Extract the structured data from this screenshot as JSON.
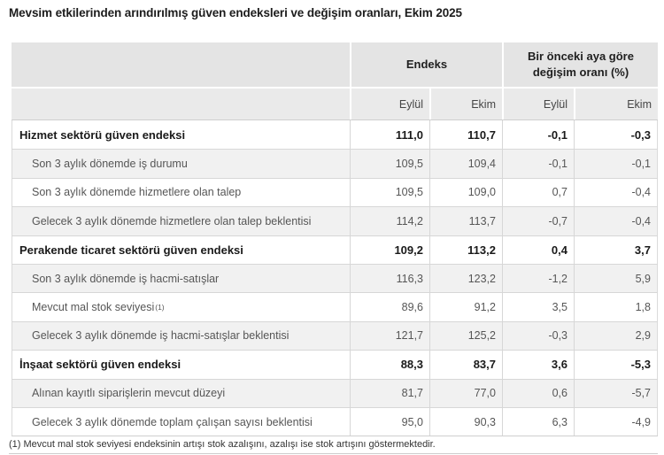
{
  "title": "Mevsim etkilerinden arındırılmış güven endeksleri ve değişim oranları, Ekim 2025",
  "table": {
    "col_groups": [
      {
        "label": "Endeks"
      },
      {
        "label": "Bir önceki aya göre değişim oranı (%)"
      }
    ],
    "sub_headers": [
      "Eylül",
      "Ekim",
      "Eylül",
      "Ekim"
    ],
    "rows": [
      {
        "label": "Hizmet sektörü güven endeksi",
        "bold": true,
        "values": [
          "111,0",
          "110,7",
          "-0,1",
          "-0,3"
        ]
      },
      {
        "label": "Son 3 aylık dönemde iş durumu",
        "bold": false,
        "values": [
          "109,5",
          "109,4",
          "-0,1",
          "-0,1"
        ]
      },
      {
        "label": "Son 3 aylık dönemde hizmetlere olan talep",
        "bold": false,
        "values": [
          "109,5",
          "109,0",
          "0,7",
          "-0,4"
        ]
      },
      {
        "label": "Gelecek 3 aylık dönemde hizmetlere olan talep beklentisi",
        "bold": false,
        "values": [
          "114,2",
          "113,7",
          "-0,7",
          "-0,4"
        ]
      },
      {
        "label": "Perakende ticaret sektörü güven endeksi",
        "bold": true,
        "values": [
          "109,2",
          "113,2",
          "0,4",
          "3,7"
        ]
      },
      {
        "label": "Son 3 aylık dönemde iş hacmi-satışlar",
        "bold": false,
        "values": [
          "116,3",
          "123,2",
          "-1,2",
          "5,9"
        ]
      },
      {
        "label": "Mevcut mal stok seviyesi",
        "sup": "(1)",
        "bold": false,
        "values": [
          "89,6",
          "91,2",
          "3,5",
          "1,8"
        ]
      },
      {
        "label": "Gelecek 3 aylık dönemde iş hacmi-satışlar beklentisi",
        "bold": false,
        "values": [
          "121,7",
          "125,2",
          "-0,3",
          "2,9"
        ]
      },
      {
        "label": "İnşaat sektörü güven endeksi",
        "bold": true,
        "values": [
          "88,3",
          "83,7",
          "3,6",
          "-5,3"
        ]
      },
      {
        "label": "Alınan kayıtlı siparişlerin mevcut düzeyi",
        "bold": false,
        "values": [
          "81,7",
          "77,0",
          "0,6",
          "-5,7"
        ]
      },
      {
        "label": "Gelecek 3 aylık dönemde toplam çalışan sayısı beklentisi",
        "bold": false,
        "values": [
          "95,0",
          "90,3",
          "6,3",
          "-4,9"
        ]
      }
    ]
  },
  "footnote": "(1) Mevcut mal stok seviyesi endeksinin artışı stok azalışını, azalışı ise stok artışını göstermektedir.",
  "colors": {
    "header_group_bg": "#e4e4e4",
    "header_sub_bg": "#eaeaea",
    "stripe_bg": "#f1f1f1",
    "border": "#d7d7d7",
    "text_primary": "#1a1a1a",
    "text_secondary": "#565656"
  },
  "chart_data": {
    "type": "table",
    "title": "Mevsim etkilerinden arındırılmış güven endeksleri ve değişim oranları, Ekim 2025",
    "columns": [
      "Endeks Eylül",
      "Endeks Ekim",
      "Bir önceki aya göre değişim oranı (%) Eylül",
      "Bir önceki aya göre değişim oranı (%) Ekim"
    ],
    "rows": [
      {
        "label": "Hizmet sektörü güven endeksi",
        "values": [
          111.0,
          110.7,
          -0.1,
          -0.3
        ]
      },
      {
        "label": "Son 3 aylık dönemde iş durumu",
        "values": [
          109.5,
          109.4,
          -0.1,
          -0.1
        ]
      },
      {
        "label": "Son 3 aylık dönemde hizmetlere olan talep",
        "values": [
          109.5,
          109.0,
          0.7,
          -0.4
        ]
      },
      {
        "label": "Gelecek 3 aylık dönemde hizmetlere olan talep beklentisi",
        "values": [
          114.2,
          113.7,
          -0.7,
          -0.4
        ]
      },
      {
        "label": "Perakende ticaret sektörü güven endeksi",
        "values": [
          109.2,
          113.2,
          0.4,
          3.7
        ]
      },
      {
        "label": "Son 3 aylık dönemde iş hacmi-satışlar",
        "values": [
          116.3,
          123.2,
          -1.2,
          5.9
        ]
      },
      {
        "label": "Mevcut mal stok seviyesi (1)",
        "values": [
          89.6,
          91.2,
          3.5,
          1.8
        ]
      },
      {
        "label": "Gelecek 3 aylık dönemde iş hacmi-satışlar beklentisi",
        "values": [
          121.7,
          125.2,
          -0.3,
          2.9
        ]
      },
      {
        "label": "İnşaat sektörü güven endeksi",
        "values": [
          88.3,
          83.7,
          3.6,
          -5.3
        ]
      },
      {
        "label": "Alınan kayıtlı siparişlerin mevcut düzeyi",
        "values": [
          81.7,
          77.0,
          0.6,
          -5.7
        ]
      },
      {
        "label": "Gelecek 3 aylık dönemde toplam çalışan sayısı beklentisi",
        "values": [
          95.0,
          90.3,
          6.3,
          -4.9
        ]
      }
    ],
    "footnote": "(1) Mevcut mal stok seviyesi endeksinin artışı stok azalışını, azalışı ise stok artışını göstermektedir."
  }
}
